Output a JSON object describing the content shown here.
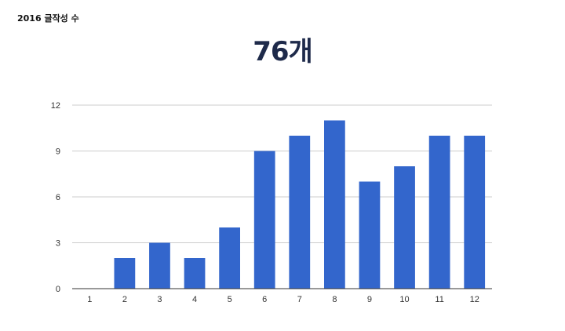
{
  "widget": {
    "title": "2016 글작성 수",
    "total": "76개"
  },
  "chart_data": {
    "type": "bar",
    "title": "",
    "xlabel": "",
    "ylabel": "",
    "categories": [
      "1",
      "2",
      "3",
      "4",
      "5",
      "6",
      "7",
      "8",
      "9",
      "10",
      "11",
      "12"
    ],
    "values": [
      0,
      2,
      3,
      2,
      4,
      9,
      10,
      11,
      7,
      8,
      10,
      10
    ],
    "ylim": [
      0,
      12
    ],
    "yticks": [
      "0",
      "3",
      "6",
      "9",
      "12"
    ],
    "grid": true,
    "legend": "none",
    "bar_color": "#3366cc",
    "grid_color": "#cccccc",
    "axis_color": "#333333"
  }
}
